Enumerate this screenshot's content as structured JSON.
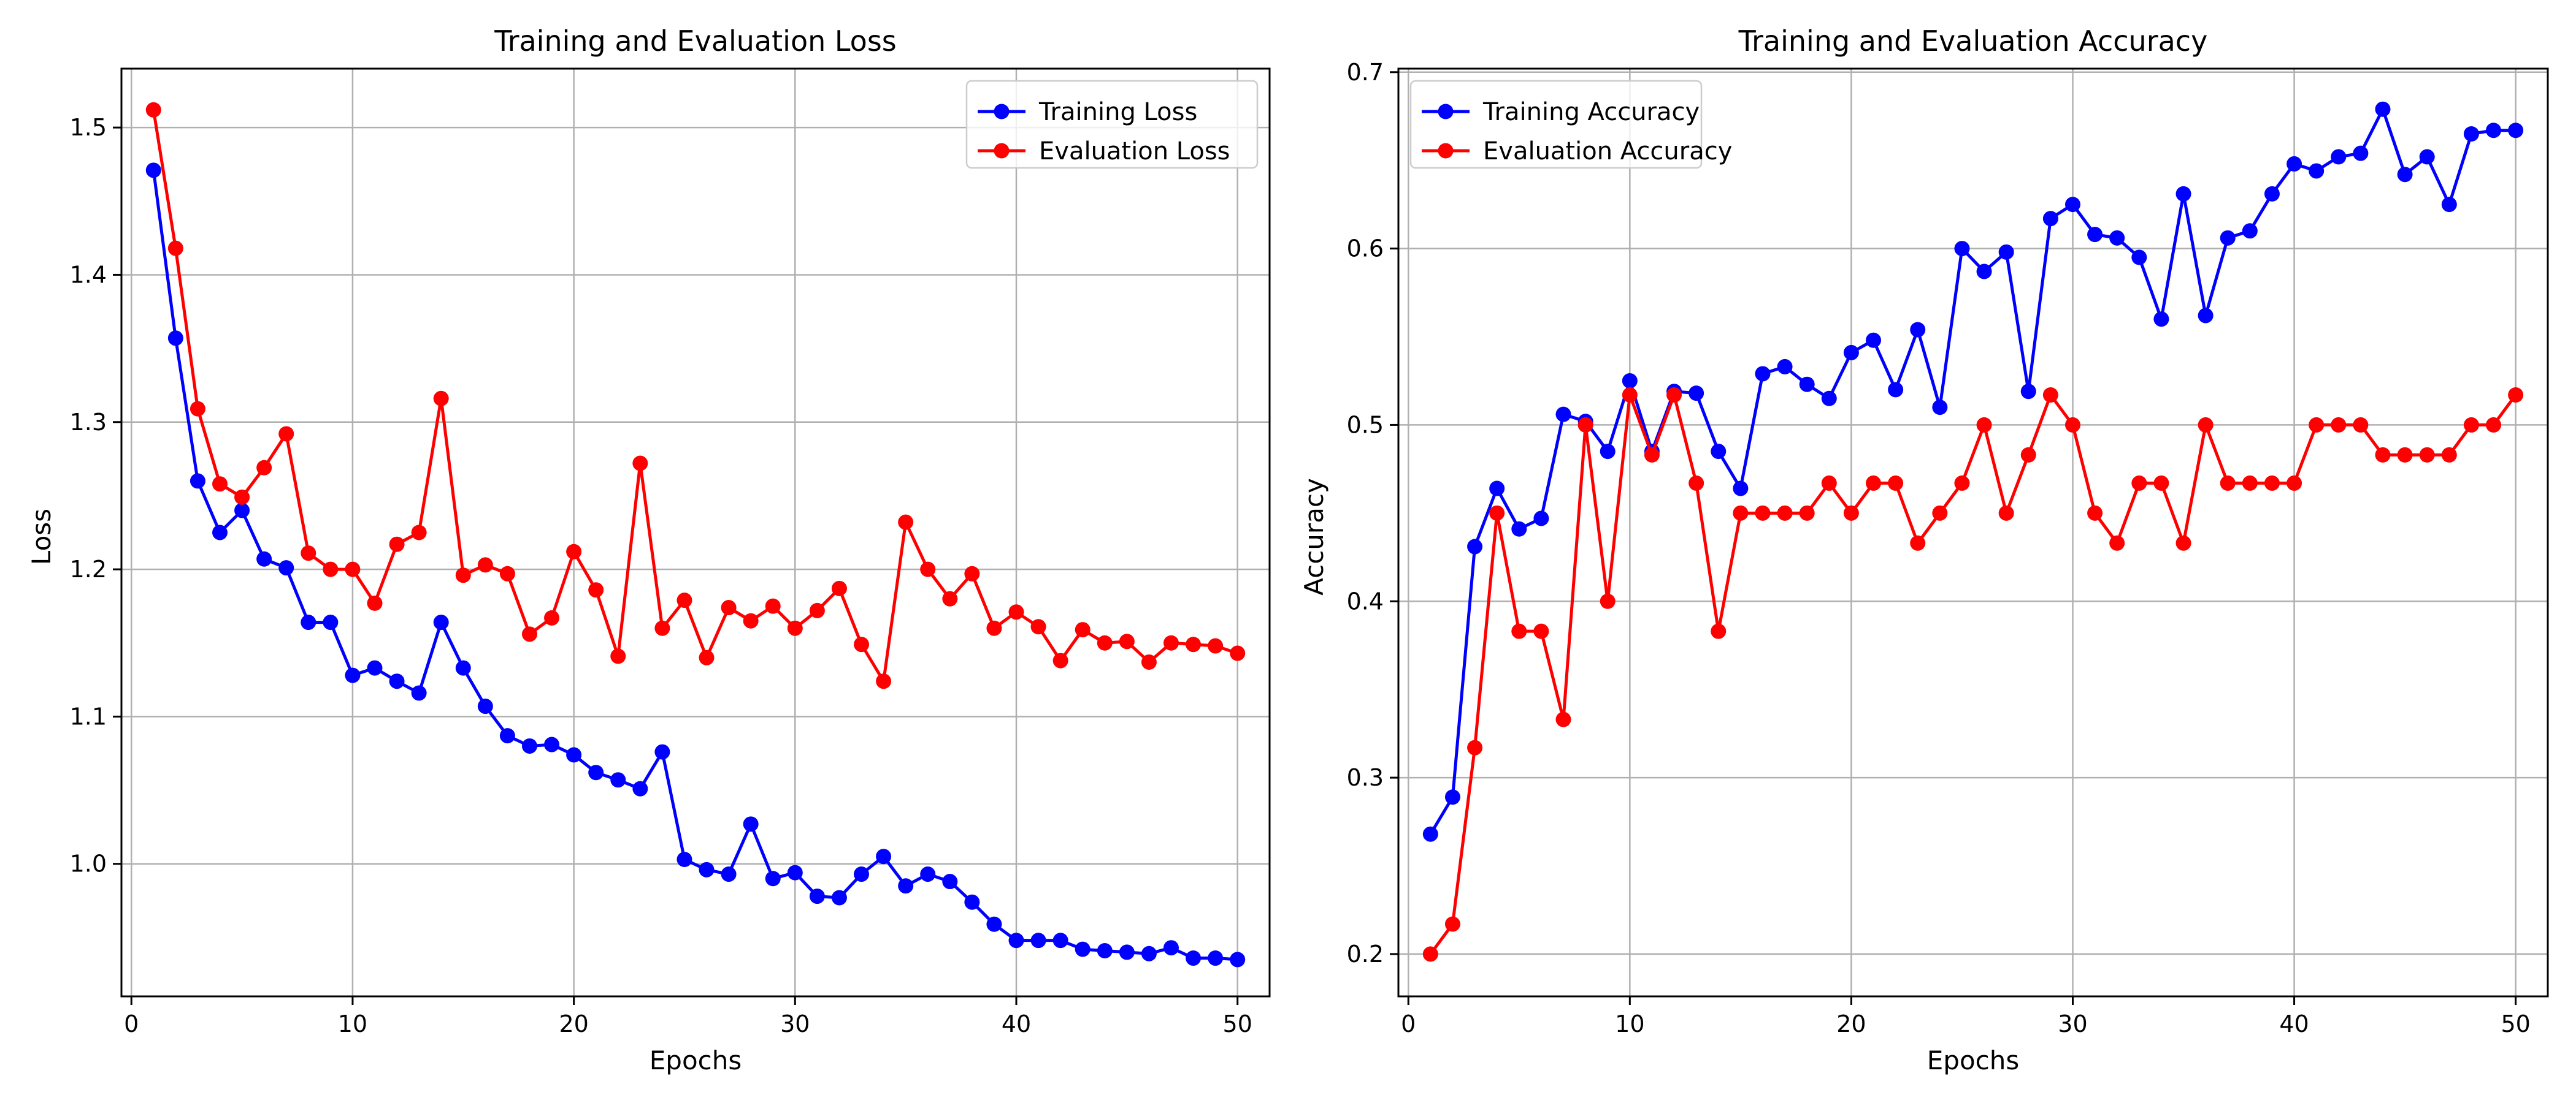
{
  "chart_data": [
    {
      "type": "line",
      "title": "Training and Evaluation Loss",
      "xlabel": "Epochs",
      "ylabel": "Loss",
      "xlim": [
        -0.45,
        51.45
      ],
      "ylim": [
        0.91,
        1.54
      ],
      "xticks": [
        0,
        10,
        20,
        30,
        40,
        50
      ],
      "yticks": [
        1.0,
        1.1,
        1.2,
        1.3,
        1.4,
        1.5
      ],
      "ytick_decimals": 1,
      "grid": true,
      "legend_position": "top-right",
      "x": [
        1,
        2,
        3,
        4,
        5,
        6,
        7,
        8,
        9,
        10,
        11,
        12,
        13,
        14,
        15,
        16,
        17,
        18,
        19,
        20,
        21,
        22,
        23,
        24,
        25,
        26,
        27,
        28,
        29,
        30,
        31,
        32,
        33,
        34,
        35,
        36,
        37,
        38,
        39,
        40,
        41,
        42,
        43,
        44,
        45,
        46,
        47,
        48,
        49,
        50
      ],
      "series": [
        {
          "name": "Training Loss",
          "color": "#0000ff",
          "values": [
            1.471,
            1.357,
            1.26,
            1.225,
            1.24,
            1.207,
            1.201,
            1.164,
            1.164,
            1.128,
            1.133,
            1.124,
            1.116,
            1.164,
            1.133,
            1.107,
            1.087,
            1.08,
            1.081,
            1.074,
            1.062,
            1.057,
            1.051,
            1.076,
            1.003,
            0.996,
            0.993,
            1.027,
            0.99,
            0.994,
            0.978,
            0.977,
            0.993,
            1.005,
            0.985,
            0.993,
            0.988,
            0.974,
            0.959,
            0.948,
            0.948,
            0.948,
            0.942,
            0.941,
            0.94,
            0.939,
            0.943,
            0.936,
            0.936,
            0.935
          ]
        },
        {
          "name": "Evaluation Loss",
          "color": "#ff0000",
          "values": [
            1.512,
            1.418,
            1.309,
            1.258,
            1.249,
            1.269,
            1.292,
            1.211,
            1.2,
            1.2,
            1.177,
            1.217,
            1.225,
            1.316,
            1.196,
            1.203,
            1.197,
            1.156,
            1.167,
            1.212,
            1.186,
            1.141,
            1.272,
            1.16,
            1.179,
            1.14,
            1.174,
            1.165,
            1.175,
            1.16,
            1.172,
            1.187,
            1.149,
            1.124,
            1.232,
            1.2,
            1.18,
            1.197,
            1.16,
            1.171,
            1.161,
            1.138,
            1.159,
            1.15,
            1.151,
            1.137,
            1.15,
            1.149,
            1.148,
            1.143
          ]
        }
      ]
    },
    {
      "type": "line",
      "title": "Training and Evaluation Accuracy",
      "xlabel": "Epochs",
      "ylabel": "Accuracy",
      "xlim": [
        -0.45,
        51.45
      ],
      "ylim": [
        0.176,
        0.702
      ],
      "xticks": [
        0,
        10,
        20,
        30,
        40,
        50
      ],
      "yticks": [
        0.2,
        0.3,
        0.4,
        0.5,
        0.6,
        0.7
      ],
      "ytick_decimals": 1,
      "grid": true,
      "legend_position": "top-left",
      "x": [
        1,
        2,
        3,
        4,
        5,
        6,
        7,
        8,
        9,
        10,
        11,
        12,
        13,
        14,
        15,
        16,
        17,
        18,
        19,
        20,
        21,
        22,
        23,
        24,
        25,
        26,
        27,
        28,
        29,
        30,
        31,
        32,
        33,
        34,
        35,
        36,
        37,
        38,
        39,
        40,
        41,
        42,
        43,
        44,
        45,
        46,
        47,
        48,
        49,
        50
      ],
      "series": [
        {
          "name": "Training Accuracy",
          "color": "#0000ff",
          "values": [
            0.268,
            0.289,
            0.431,
            0.464,
            0.441,
            0.447,
            0.506,
            0.502,
            0.485,
            0.525,
            0.485,
            0.519,
            0.518,
            0.485,
            0.464,
            0.529,
            0.533,
            0.523,
            0.515,
            0.541,
            0.548,
            0.52,
            0.554,
            0.51,
            0.6,
            0.587,
            0.598,
            0.519,
            0.617,
            0.625,
            0.608,
            0.606,
            0.595,
            0.56,
            0.631,
            0.562,
            0.606,
            0.61,
            0.631,
            0.648,
            0.644,
            0.652,
            0.654,
            0.679,
            0.642,
            0.652,
            0.625,
            0.665,
            0.667,
            0.667
          ]
        },
        {
          "name": "Evaluation Accuracy",
          "color": "#ff0000",
          "values": [
            0.2,
            0.217,
            0.317,
            0.45,
            0.383,
            0.383,
            0.333,
            0.5,
            0.4,
            0.517,
            0.483,
            0.517,
            0.467,
            0.383,
            0.45,
            0.45,
            0.45,
            0.45,
            0.467,
            0.45,
            0.467,
            0.467,
            0.433,
            0.45,
            0.467,
            0.5,
            0.45,
            0.483,
            0.517,
            0.5,
            0.45,
            0.433,
            0.467,
            0.467,
            0.433,
            0.5,
            0.467,
            0.467,
            0.467,
            0.467,
            0.5,
            0.5,
            0.5,
            0.483,
            0.483,
            0.483,
            0.483,
            0.5,
            0.5,
            0.517
          ]
        }
      ]
    }
  ]
}
